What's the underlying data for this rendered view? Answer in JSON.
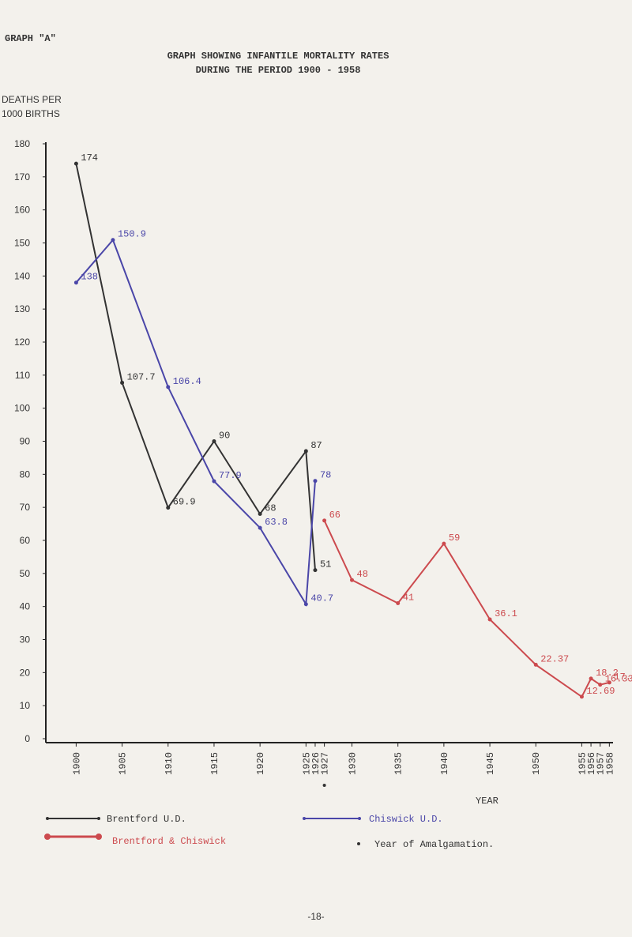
{
  "page_header": "GRAPH \"A\"",
  "page_number": "-18-",
  "chart_data": {
    "type": "line",
    "title": [
      "GRAPH SHOWING INFANTILE MORTALITY RATES",
      "DURING THE PERIOD 1900 - 1958"
    ],
    "y_label": [
      "DEATHS PER",
      "1000 BIRTHS"
    ],
    "x_label": "YEAR",
    "xlim": [
      1896.7,
      1958.4
    ],
    "xticks": [
      1900,
      1905,
      1910,
      1915,
      1920,
      1925,
      1926,
      1927,
      1930,
      1935,
      1940,
      1945,
      1950,
      1955,
      1956,
      1957,
      1958
    ],
    "ylim": [
      0,
      180
    ],
    "yticks": [
      0,
      10,
      20,
      30,
      40,
      50,
      60,
      70,
      80,
      90,
      100,
      110,
      120,
      130,
      140,
      150,
      160,
      170,
      180
    ],
    "series": [
      {
        "name": "Brentford U.D.",
        "color": "#333333",
        "x": [
          1900,
          1905,
          1910,
          1915,
          1920,
          1925,
          1926
        ],
        "values": [
          174,
          107.7,
          69.9,
          90,
          68,
          87,
          51
        ],
        "value_labels": [
          "174",
          "107.7",
          "69.9",
          "90",
          "68",
          "87",
          "51"
        ]
      },
      {
        "name": "Chiswick U.D.",
        "color": "#4a46a8",
        "x": [
          1900,
          1904,
          1910,
          1915,
          1920,
          1925,
          1926
        ],
        "values": [
          138,
          150.9,
          106.4,
          77.9,
          63.8,
          40.7,
          78
        ],
        "value_labels": [
          "138",
          "150.9",
          "106.4",
          "77.9",
          "63.8",
          "40.7",
          "78"
        ]
      },
      {
        "name": "Brentford & Chiswick",
        "color": "#cc4a4e",
        "x": [
          1927,
          1930,
          1935,
          1940,
          1945,
          1950,
          1955,
          1956,
          1957,
          1958
        ],
        "values": [
          66,
          48,
          41,
          59,
          36.1,
          22.37,
          12.69,
          18.2,
          16.33,
          17
        ],
        "value_labels": [
          "66",
          "48",
          "41",
          "59",
          "36.1",
          "22.37",
          "12.69",
          "18.2",
          "16.33",
          "17."
        ]
      }
    ],
    "amalgamation_year": 1927,
    "amalgamation_label": "Year of Amalgamation."
  }
}
